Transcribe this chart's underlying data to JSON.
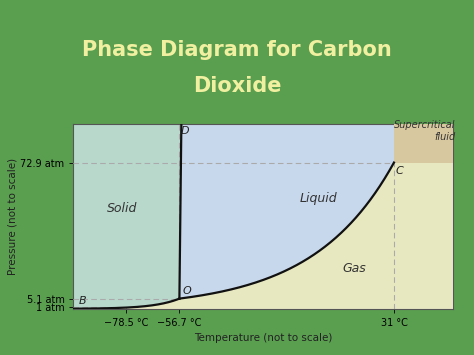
{
  "title_line1": "Phase Diagram for Carbon",
  "title_line2": "Dioxide",
  "title_color": "#f0f0a0",
  "title_fontsize": 15,
  "title_fontweight": "bold",
  "background_outer": "#5a9e50",
  "solid_color": "#b8d8cc",
  "liquid_color": "#c8d8ec",
  "gas_color": "#e8e8c0",
  "supercritical_color": "#d8c8a0",
  "plot_bg": "#f5f5ea",
  "xlabel": "Temperature (not to scale)",
  "ylabel": "Pressure (not to scale)",
  "x_ticks": [
    -78.5,
    -56.7,
    31.0
  ],
  "x_tick_labels": [
    "−78.5 °C",
    "−56.7 °C",
    "31 °C"
  ],
  "y_ticks": [
    1.0,
    5.1,
    72.9
  ],
  "y_tick_labels": [
    "1 atm",
    "5.1 atm",
    "72.9 atm"
  ],
  "triple_point_x": -56.7,
  "triple_point_y": 5.1,
  "triple_point_label": "O",
  "critical_point_x": 31.0,
  "critical_point_y": 72.9,
  "critical_point_label": "C",
  "point_D_label": "D",
  "point_B_label": "B",
  "dashed_color": "#aaaaaa",
  "curve_color": "#111111",
  "label_solid": "Solid",
  "label_liquid": "Liquid",
  "label_gas": "Gas",
  "label_supercritical": "Supercritical\nfluid",
  "xlim": [
    -100,
    55
  ],
  "ylim": [
    0,
    92
  ],
  "sub_start_y": 0.08
}
